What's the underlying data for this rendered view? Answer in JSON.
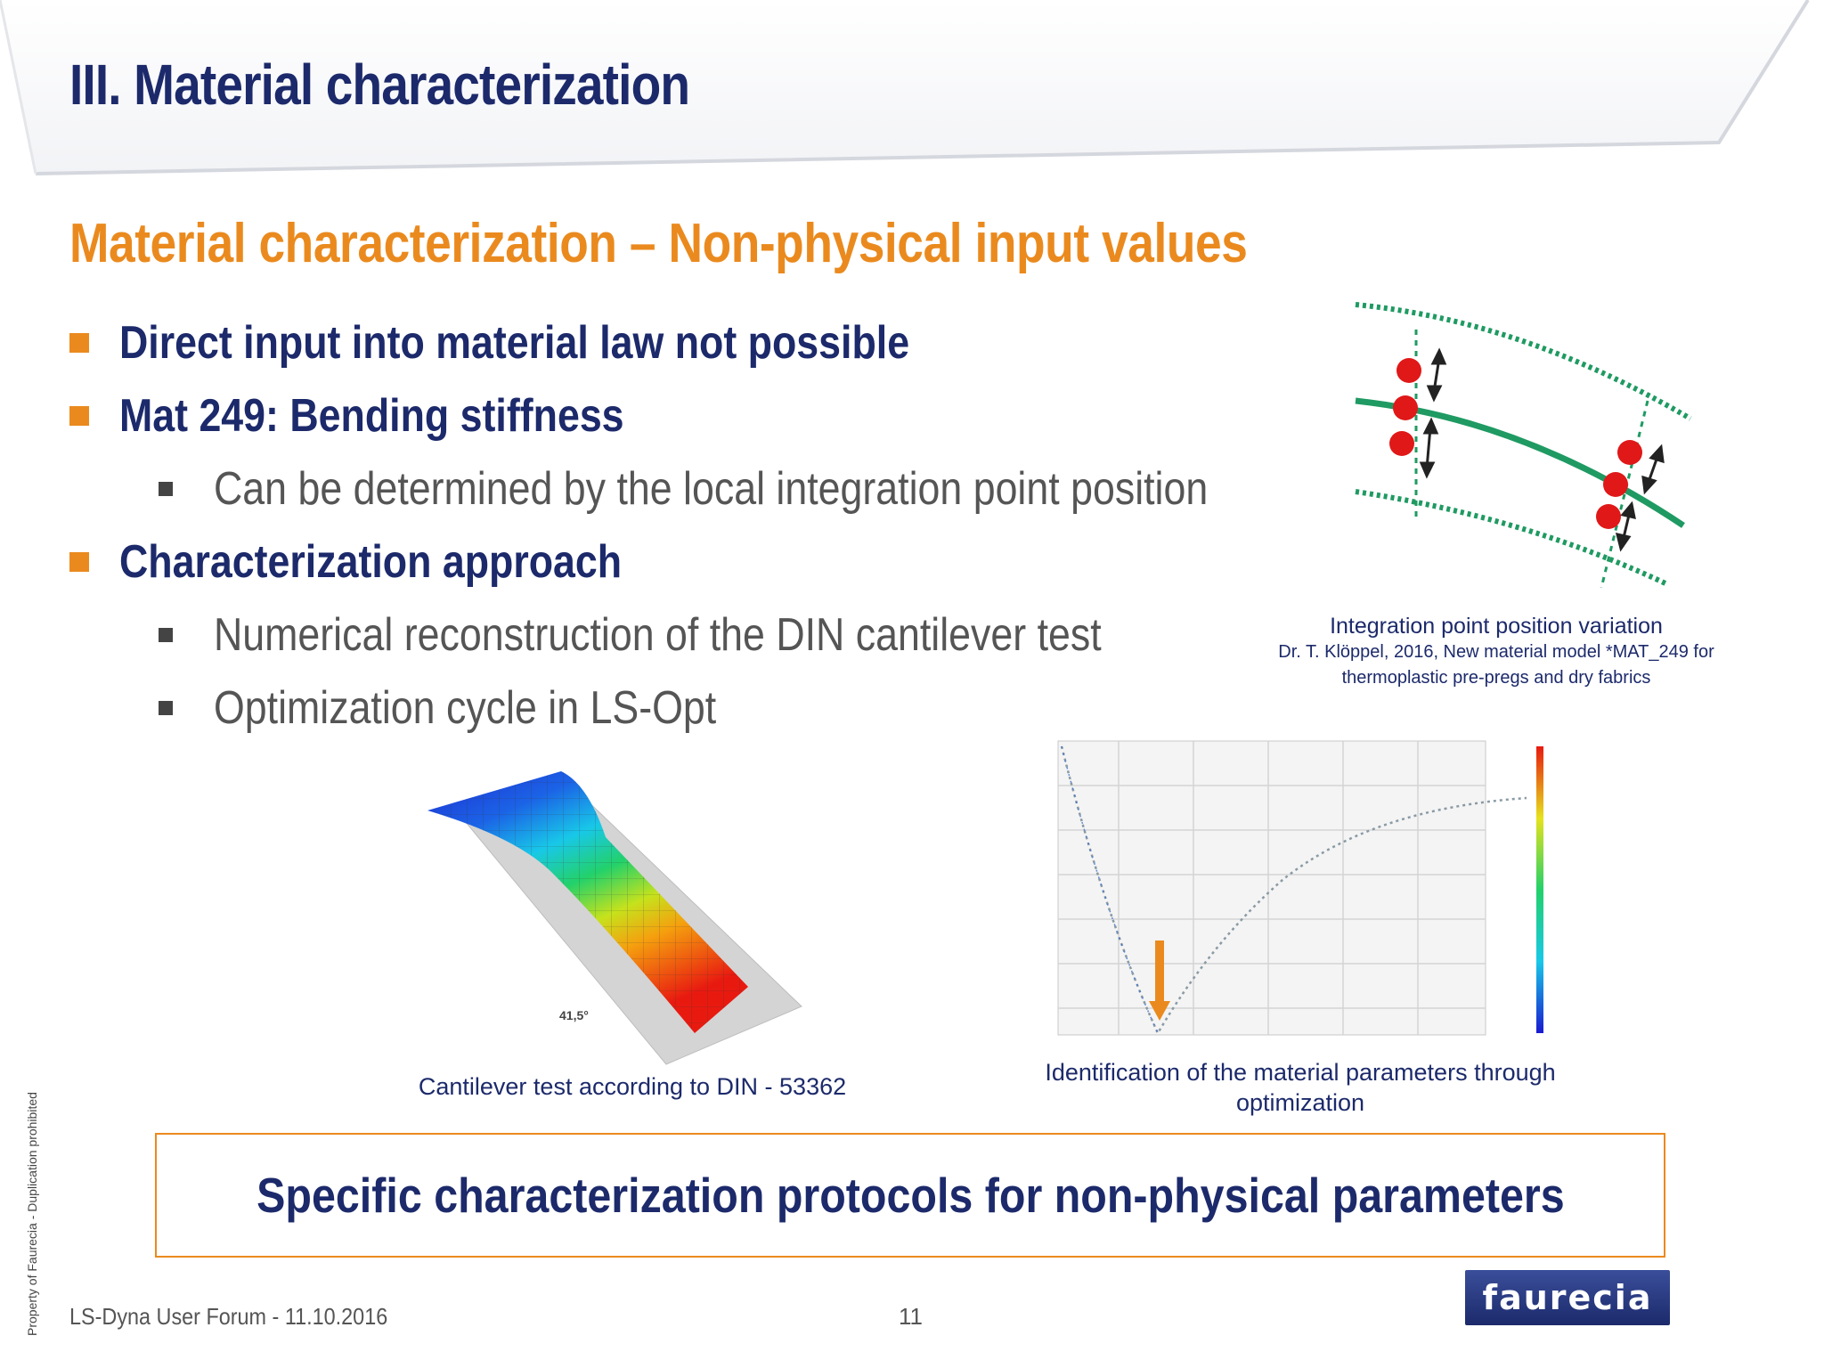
{
  "slide": {
    "title": "III. Material characterization",
    "subtitle": "Material characterization – Non-physical input values"
  },
  "bullets": [
    {
      "level": 1,
      "text": "Direct input into material law not possible"
    },
    {
      "level": 1,
      "text": "Mat 249: Bending stiffness"
    },
    {
      "level": 2,
      "text": "Can be determined by the local integration point position"
    },
    {
      "level": 1,
      "text": "Characterization approach"
    },
    {
      "level": 2,
      "text": "Numerical reconstruction of the DIN cantilever test"
    },
    {
      "level": 2,
      "text": "Optimization cycle in LS-Opt"
    }
  ],
  "figures": {
    "integration": {
      "caption": "Integration point position variation",
      "reference_line1": "Dr. T. Klöppel, 2016, New material model *MAT_249 for",
      "reference_line2": "thermoplastic pre-pregs and dry fabrics"
    },
    "cantilever": {
      "caption": "Cantilever test according to DIN - 53362",
      "angle_label": "41,5°"
    },
    "optimization": {
      "caption_line1": "Identification of the material parameters through",
      "caption_line2": "optimization"
    }
  },
  "callout": "Specific characterization protocols for non-physical parameters",
  "footer": {
    "event": "LS-Dyna User Forum - 11.10.2016",
    "page": "11",
    "side_note": "Property of Faurecia - Duplication prohibited",
    "logo_text": "faurecia"
  },
  "colors": {
    "navy": "#1c2a6b",
    "orange": "#ea8a1e",
    "gray_text": "#555555",
    "green_curve": "#1f9a62",
    "red_point": "#e01818"
  }
}
